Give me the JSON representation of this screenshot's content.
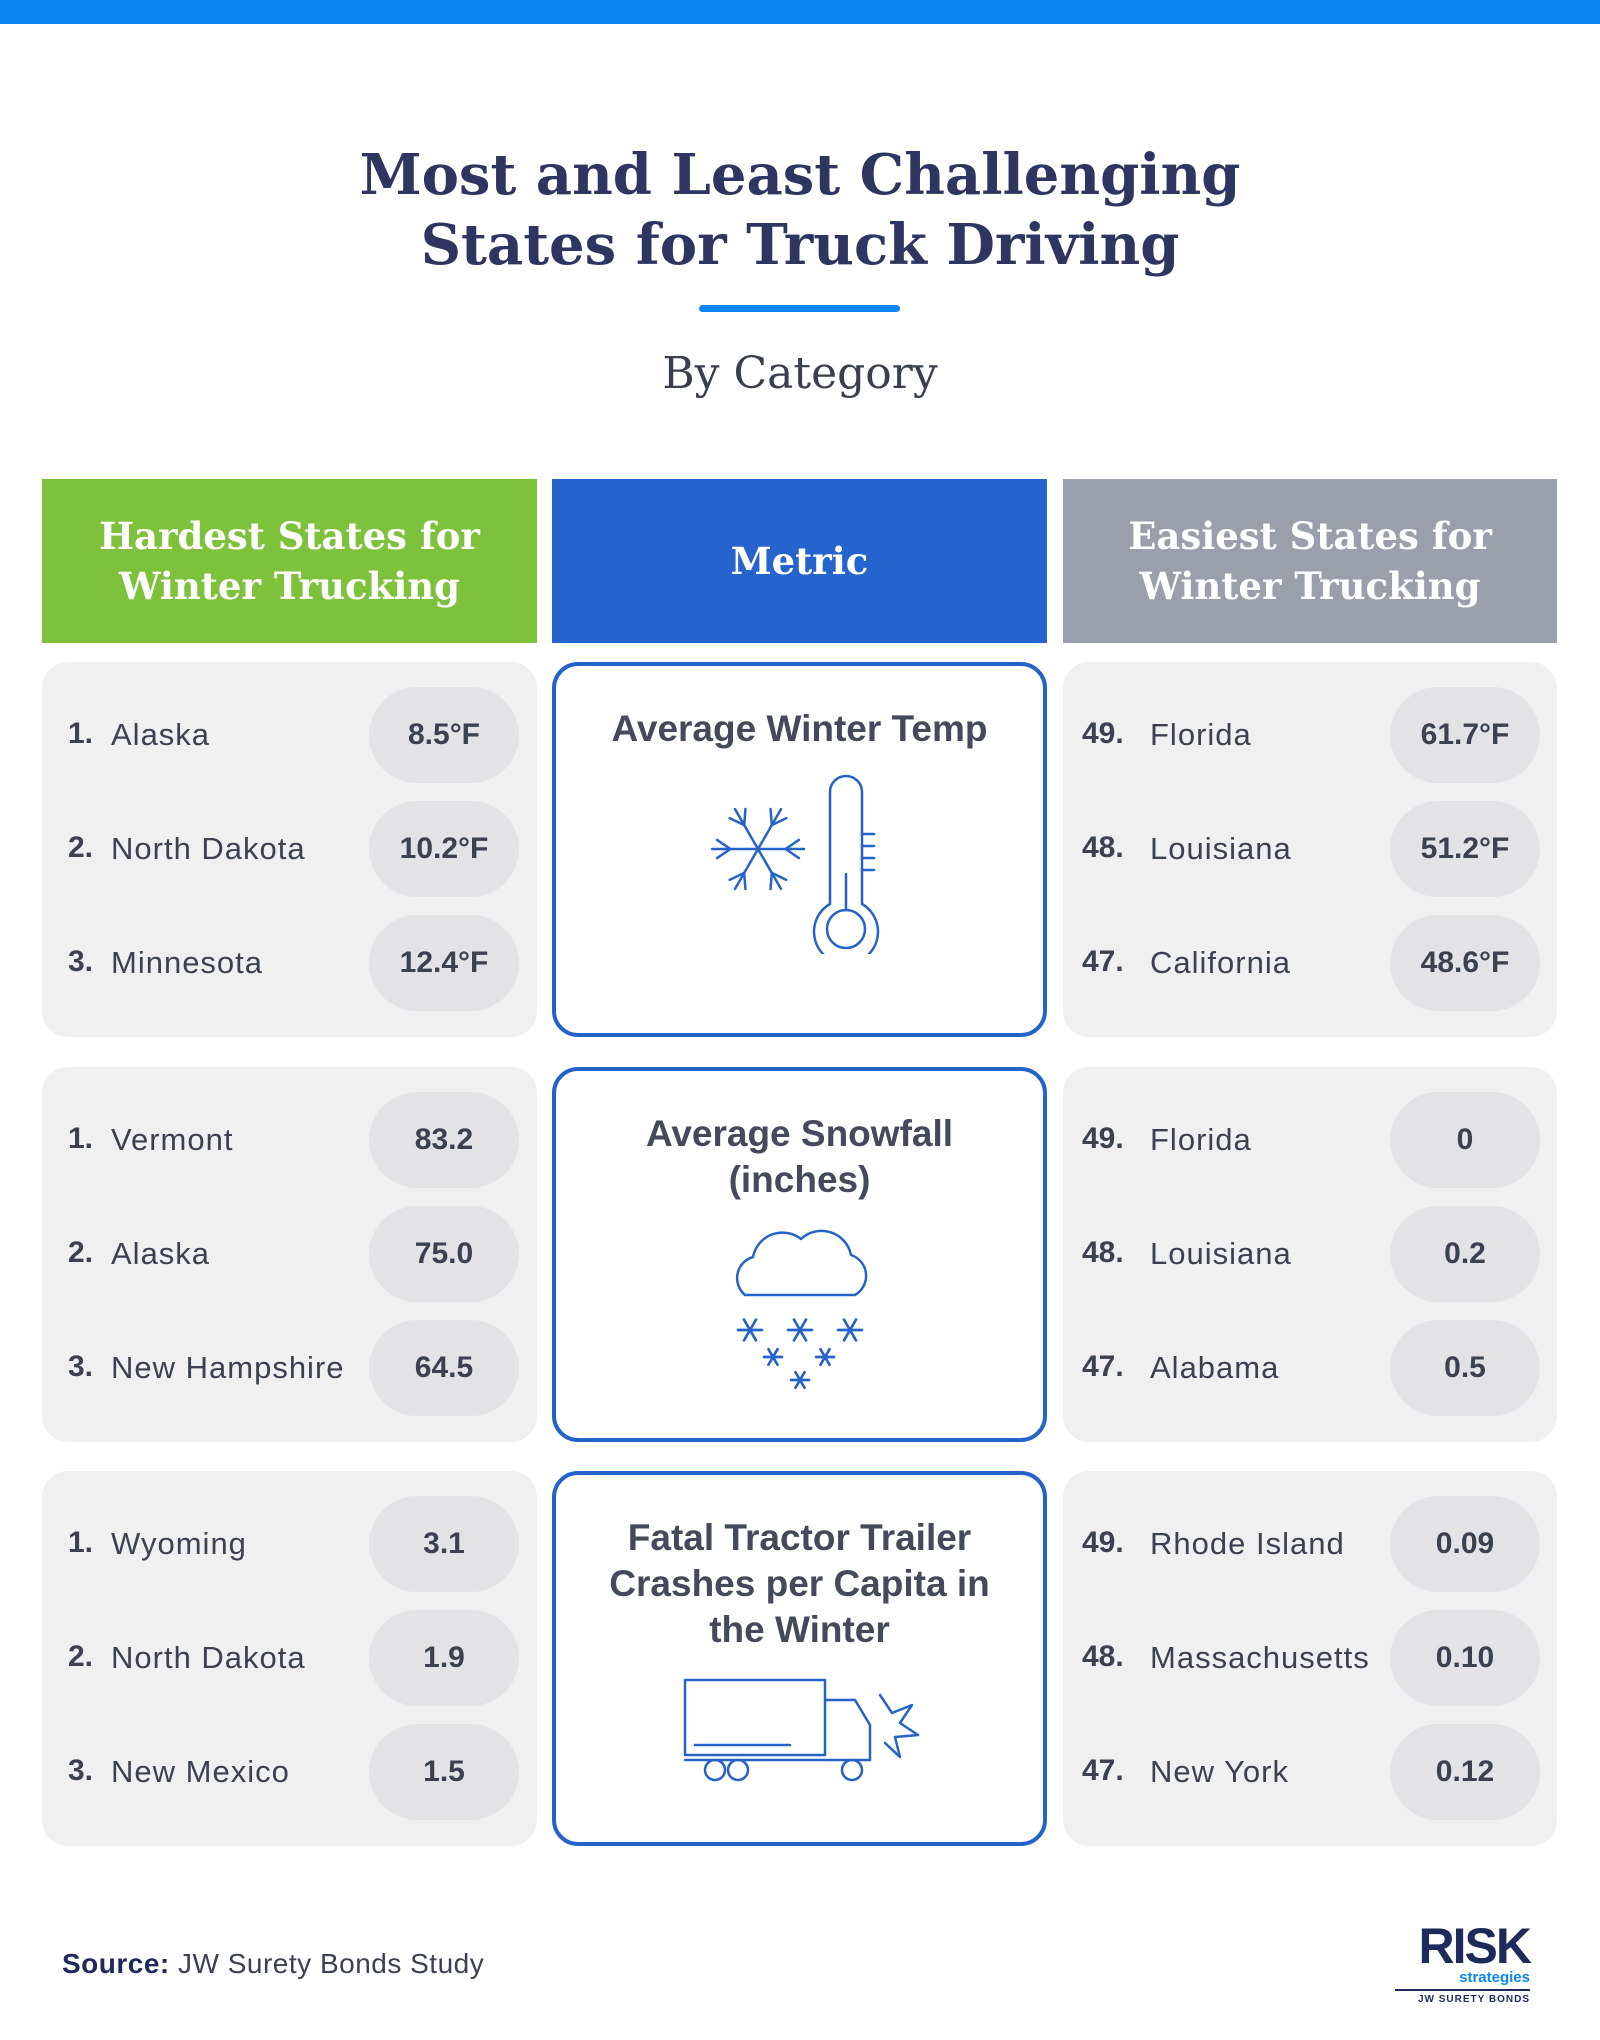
{
  "header": {
    "title": "Most and Least Challenging States for Truck Driving",
    "subtitle": "By Category"
  },
  "columns": {
    "hardest": "Hardest States for Winter Trucking",
    "metric": "Metric",
    "easiest": "Easiest States for Winter Trucking"
  },
  "sections": [
    {
      "metric": "Average Winter Temp",
      "hardest": [
        {
          "rank": "1.",
          "state": "Alaska",
          "value": "8.5°F"
        },
        {
          "rank": "2.",
          "state": "North Dakota",
          "value": "10.2°F"
        },
        {
          "rank": "3.",
          "state": "Minnesota",
          "value": "12.4°F"
        }
      ],
      "easiest": [
        {
          "rank": "49.",
          "state": "Florida",
          "value": "61.7°F"
        },
        {
          "rank": "48.",
          "state": "Louisiana",
          "value": "51.2°F"
        },
        {
          "rank": "47.",
          "state": "California",
          "value": "48.6°F"
        }
      ]
    },
    {
      "metric": "Average Snowfall (inches)",
      "hardest": [
        {
          "rank": "1.",
          "state": "Vermont",
          "value": "83.2"
        },
        {
          "rank": "2.",
          "state": "Alaska",
          "value": "75.0"
        },
        {
          "rank": "3.",
          "state": "New Hampshire",
          "value": "64.5"
        }
      ],
      "easiest": [
        {
          "rank": "49.",
          "state": "Florida",
          "value": "0"
        },
        {
          "rank": "48.",
          "state": "Louisiana",
          "value": "0.2"
        },
        {
          "rank": "47.",
          "state": "Alabama",
          "value": "0.5"
        }
      ]
    },
    {
      "metric": "Fatal Tractor Trailer Crashes per Capita in the Winter",
      "hardest": [
        {
          "rank": "1.",
          "state": "Wyoming",
          "value": "3.1"
        },
        {
          "rank": "2.",
          "state": "North Dakota",
          "value": "1.9"
        },
        {
          "rank": "3.",
          "state": "New Mexico",
          "value": "1.5"
        }
      ],
      "easiest": [
        {
          "rank": "49.",
          "state": "Rhode Island",
          "value": "0.09"
        },
        {
          "rank": "48.",
          "state": "Massachusetts",
          "value": "0.10"
        },
        {
          "rank": "47.",
          "state": "New York",
          "value": "0.12"
        }
      ]
    }
  ],
  "footer": {
    "source_label": "Source:",
    "source": "JW Surety Bonds Study",
    "logo": {
      "name": "RISK",
      "sub": "strategies",
      "tagline": "JW SURETY BONDS"
    }
  }
}
